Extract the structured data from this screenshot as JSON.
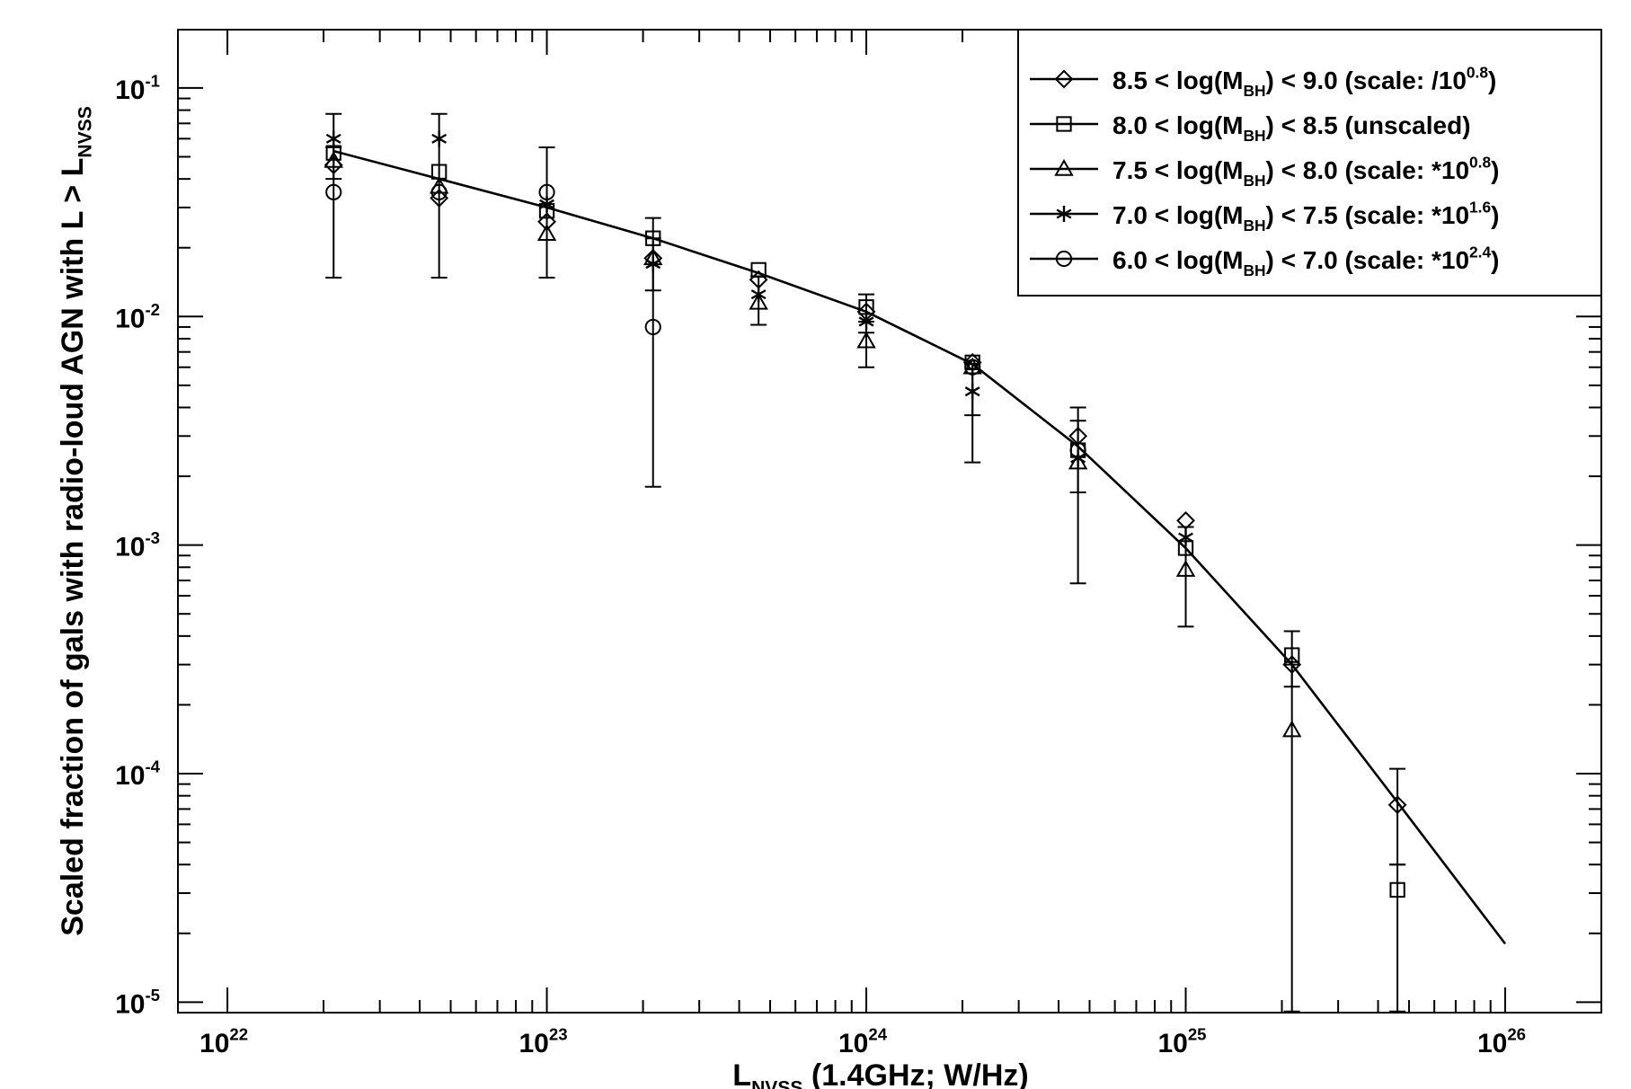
{
  "chart_data": {
    "type": "scatter",
    "title": "",
    "xlabel": {
      "main": "L",
      "sub": "NVSS",
      "rest": " (1.4GHz; W/Hz)"
    },
    "ylabel": {
      "main": "Scaled fraction of gals with radio-loud AGN with L > L",
      "sub": "NVSS"
    },
    "x_scale": "log",
    "y_scale": "log",
    "xlim": [
      7e+21,
      2e+26
    ],
    "ylim": [
      9e-06,
      0.18
    ],
    "x_ticks": [
      {
        "value": 1e+22,
        "base": "10",
        "exp": "22"
      },
      {
        "value": 1e+23,
        "base": "10",
        "exp": "23"
      },
      {
        "value": 1e+24,
        "base": "10",
        "exp": "24"
      },
      {
        "value": 1e+25,
        "base": "10",
        "exp": "25"
      },
      {
        "value": 1e+26,
        "base": "10",
        "exp": "26"
      }
    ],
    "y_ticks": [
      {
        "value": 1e-05,
        "base": "10",
        "exp": "-5"
      },
      {
        "value": 0.0001,
        "base": "10",
        "exp": "-4"
      },
      {
        "value": 0.001,
        "base": "10",
        "exp": "-3"
      },
      {
        "value": 0.01,
        "base": "10",
        "exp": "-2"
      },
      {
        "value": 0.1,
        "base": "10",
        "exp": "-1"
      }
    ],
    "legend_position": "top-right",
    "fit_line": {
      "x": [
        2.15e+22,
        4.6e+22,
        1e+23,
        2.15e+23,
        4.6e+23,
        1e+24,
        2.15e+24,
        4.6e+24,
        1e+25,
        2.15e+25,
        4.6e+25,
        1e+26
      ],
      "y": [
        0.053,
        0.04,
        0.03,
        0.022,
        0.0155,
        0.0105,
        0.0062,
        0.0027,
        0.00097,
        0.0003,
        7.5e-05,
        1.8e-05
      ]
    },
    "series": [
      {
        "marker": "diamond",
        "label": {
          "pre": "8.5 < log(M",
          "sub": "BH",
          "mid": ") < 9.0 (scale: /10",
          "sup": "0.8",
          "post": ")"
        },
        "points": [
          {
            "x": 2.15e+22,
            "y": 0.046
          },
          {
            "x": 4.6e+22,
            "y": 0.033
          },
          {
            "x": 1e+23,
            "y": 0.026
          },
          {
            "x": 2.15e+23,
            "y": 0.018
          },
          {
            "x": 4.6e+23,
            "y": 0.0145
          },
          {
            "x": 1e+24,
            "y": 0.0105
          },
          {
            "x": 2.15e+24,
            "y": 0.0063
          },
          {
            "x": 4.6e+24,
            "y": 0.003,
            "ylo": 0.0017,
            "yhi": 0.004
          },
          {
            "x": 1e+25,
            "y": 0.00128
          },
          {
            "x": 2.15e+25,
            "y": 0.0003
          },
          {
            "x": 4.6e+25,
            "y": 7.3e-05,
            "ylo": 4e-05,
            "yhi": 0.000105
          }
        ]
      },
      {
        "marker": "square",
        "label": {
          "pre": "8.0 < log(M",
          "sub": "BH",
          "mid": ") < 8.5 (unscaled)",
          "sup": "",
          "post": ""
        },
        "points": [
          {
            "x": 2.15e+22,
            "y": 0.052
          },
          {
            "x": 4.6e+22,
            "y": 0.043
          },
          {
            "x": 1e+23,
            "y": 0.029
          },
          {
            "x": 2.15e+23,
            "y": 0.022
          },
          {
            "x": 4.6e+23,
            "y": 0.016
          },
          {
            "x": 1e+24,
            "y": 0.011,
            "ylo": 0.0085,
            "yhi": 0.0125
          },
          {
            "x": 2.15e+24,
            "y": 0.0063
          },
          {
            "x": 4.6e+24,
            "y": 0.0026
          },
          {
            "x": 1e+25,
            "y": 0.00097,
            "ylo": 0.00044,
            "yhi": 0.0012
          },
          {
            "x": 2.15e+25,
            "y": 0.00033,
            "ylo": 0.00024,
            "yhi": 0.00042
          },
          {
            "x": 4.6e+25,
            "y": 3.1e-05,
            "ylo": 9.1e-06,
            "yhi": 4e-05
          }
        ]
      },
      {
        "marker": "triangle",
        "label": {
          "pre": "7.5 < log(M",
          "sub": "BH",
          "mid": ") < 8.0 (scale: *10",
          "sup": "0.8",
          "post": ")"
        },
        "points": [
          {
            "x": 2.15e+22,
            "y": 0.048
          },
          {
            "x": 4.6e+22,
            "y": 0.037
          },
          {
            "x": 1e+23,
            "y": 0.023
          },
          {
            "x": 2.15e+23,
            "y": 0.018
          },
          {
            "x": 4.6e+23,
            "y": 0.0115
          },
          {
            "x": 1e+24,
            "y": 0.0078,
            "ylo": 0.006,
            "yhi": 0.0095
          },
          {
            "x": 2.15e+24,
            "y": 0.006
          },
          {
            "x": 4.6e+24,
            "y": 0.0023
          },
          {
            "x": 1e+25,
            "y": 0.00078
          },
          {
            "x": 2.15e+25,
            "y": 0.000155,
            "ylo": 9.1e-06,
            "yhi": 0.0003
          }
        ]
      },
      {
        "marker": "asterisk",
        "label": {
          "pre": "7.0 < log(M",
          "sub": "BH",
          "mid": ") < 7.5 (scale: *10",
          "sup": "1.6",
          "post": ")"
        },
        "points": [
          {
            "x": 2.15e+22,
            "y": 0.06,
            "ylo": 0.04,
            "yhi": 0.077
          },
          {
            "x": 4.6e+22,
            "y": 0.06
          },
          {
            "x": 1e+23,
            "y": 0.031
          },
          {
            "x": 2.15e+23,
            "y": 0.017,
            "ylo": 0.013,
            "yhi": 0.027
          },
          {
            "x": 4.6e+23,
            "y": 0.0125,
            "ylo": 0.0092,
            "yhi": 0.015
          },
          {
            "x": 1e+24,
            "y": 0.0095
          },
          {
            "x": 2.15e+24,
            "y": 0.0047,
            "ylo": 0.0037,
            "yhi": 0.0062
          },
          {
            "x": 4.6e+24,
            "y": 0.0024
          },
          {
            "x": 1e+25,
            "y": 0.00108
          }
        ]
      },
      {
        "marker": "circle",
        "label": {
          "pre": "6.0 < log(M",
          "sub": "BH",
          "mid": ") < 7.0 (scale: *10",
          "sup": "2.4",
          "post": ")"
        },
        "points": [
          {
            "x": 2.15e+22,
            "y": 0.035,
            "ylo": 0.0148,
            "yhi": 0.055
          },
          {
            "x": 4.6e+22,
            "y": 0.035,
            "ylo": 0.0148,
            "yhi": 0.077
          },
          {
            "x": 1e+23,
            "y": 0.035,
            "ylo": 0.0148,
            "yhi": 0.055
          },
          {
            "x": 2.15e+23,
            "y": 0.009,
            "ylo": 0.0018,
            "yhi": 0.022
          },
          {
            "x": 2.15e+24,
            "y": 0.006,
            "ylo": 0.0023,
            "yhi": 0.0062
          },
          {
            "x": 4.6e+24,
            "y": 0.0026,
            "ylo": 0.00068,
            "yhi": 0.0035
          }
        ]
      }
    ]
  }
}
